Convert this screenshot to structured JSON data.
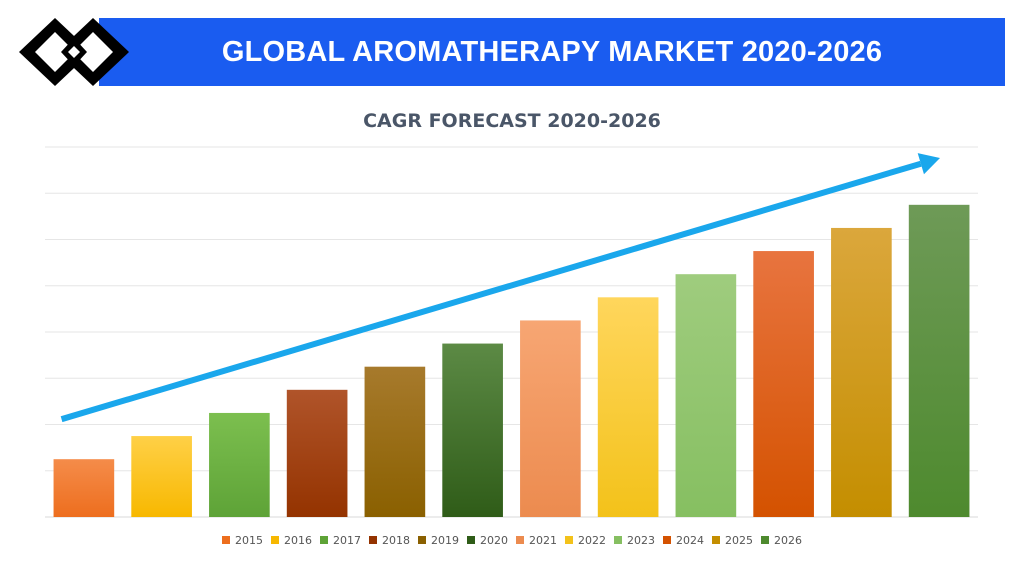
{
  "header": {
    "title": "GLOBAL AROMATHERAPY MARKET 2020-2026"
  },
  "chart_data": {
    "type": "bar",
    "title": "CAGR FORECAST 2020-2026",
    "categories": [
      "2015",
      "2016",
      "2017",
      "2018",
      "2019",
      "2020",
      "2021",
      "2022",
      "2023",
      "2024",
      "2025",
      "2026"
    ],
    "values": [
      1.25,
      1.75,
      2.25,
      2.75,
      3.25,
      3.75,
      4.25,
      4.75,
      5.25,
      5.75,
      6.25,
      6.75
    ],
    "ylim": [
      0,
      8
    ],
    "grid": true,
    "legend_position": "bottom",
    "trend_arrow": true,
    "colors": {
      "2015": [
        "#f58c4a",
        "#ed6e1e"
      ],
      "2016": [
        "#ffd047",
        "#f7b800"
      ],
      "2017": [
        "#7cbf4f",
        "#5ea337"
      ],
      "2018": [
        "#b0542a",
        "#943300"
      ],
      "2019": [
        "#a77a2c",
        "#8a6000"
      ],
      "2020": [
        "#5c8a45",
        "#2f5c18"
      ],
      "2021": [
        "#f7a673",
        "#ec8b4f"
      ],
      "2022": [
        "#ffd65c",
        "#f3c21a"
      ],
      "2023": [
        "#9fcc7e",
        "#86bf61"
      ],
      "2024": [
        "#e8743f",
        "#d45200"
      ],
      "2025": [
        "#dba73c",
        "#c48e00"
      ],
      "2026": [
        "#6e9a57",
        "#4e8a2e"
      ]
    },
    "arrow_color": "#1aa7ec"
  }
}
